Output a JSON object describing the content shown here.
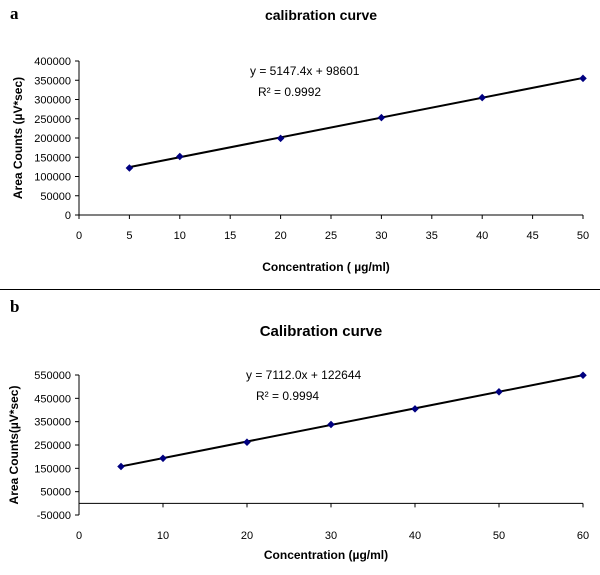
{
  "chart_data": [
    {
      "panel_label": "a",
      "type": "scatter",
      "title": "calibration  curve",
      "xlabel": "Concentration ( µg/ml)",
      "ylabel": "Area Counts  (µV*sec)",
      "xlim": [
        0,
        50
      ],
      "ylim": [
        0,
        400000
      ],
      "xticks": [
        "0",
        "5",
        "10",
        "15",
        "20",
        "25",
        "30",
        "35",
        "40",
        "45",
        "50"
      ],
      "yticks": [
        "0",
        "50000",
        "100000",
        "150000",
        "200000",
        "250000",
        "300000",
        "350000",
        "400000"
      ],
      "series": [
        {
          "x": [
            5,
            10,
            20,
            30,
            40,
            50
          ],
          "y": [
            122000,
            152000,
            199000,
            253000,
            305000,
            355000
          ],
          "color": "#000080"
        }
      ],
      "trendline": {
        "slope": 5147.4,
        "intercept": 98601,
        "x_range": [
          5,
          50
        ],
        "color": "#000000"
      },
      "equation": "y = 5147.4x + 98601",
      "r2_label": "R² = 0.9992",
      "grid": false,
      "legend": "none"
    },
    {
      "panel_label": "b",
      "type": "scatter",
      "title": "Calibration curve",
      "xlabel": "Concentration (µg/ml)",
      "ylabel": "Area Counts(µV*sec)",
      "xlim": [
        0,
        60
      ],
      "ylim": [
        -50000,
        550000
      ],
      "xticks": [
        "0",
        "10",
        "20",
        "30",
        "40",
        "50",
        "60"
      ],
      "yticks": [
        "-50000",
        "50000",
        "150000",
        "250000",
        "350000",
        "450000",
        "550000"
      ],
      "series": [
        {
          "x": [
            5,
            10,
            20,
            30,
            40,
            50,
            60
          ],
          "y": [
            158000,
            193000,
            262000,
            338000,
            405000,
            478000,
            549000
          ],
          "color": "#000080"
        }
      ],
      "trendline": {
        "slope": 7112.0,
        "intercept": 122644,
        "x_range": [
          5,
          60
        ],
        "color": "#000000"
      },
      "equation": "y = 7112.0x + 122644",
      "r2_label": "R² = 0.9994",
      "grid": false,
      "legend": "none"
    }
  ]
}
